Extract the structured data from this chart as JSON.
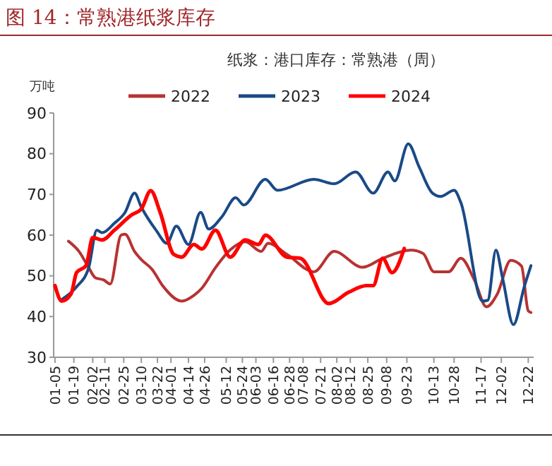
{
  "chart_data": {
    "type": "line",
    "title": "图 14：常熟港纸浆库存",
    "subtitle": "纸浆：港口库存：常熟港（周）",
    "ylabel": "万吨",
    "ylim": [
      30,
      90
    ],
    "yticks": [
      30,
      40,
      50,
      60,
      70,
      80,
      90
    ],
    "xlim": [
      "--01-04",
      "--12-26"
    ],
    "xticks": [
      {
        "value": "--01-05",
        "label": "01-05"
      },
      {
        "value": "--01-19",
        "label": "01-19"
      },
      {
        "value": "--02-02",
        "label": "02-02"
      },
      {
        "value": "--02-11",
        "label": "02-11"
      },
      {
        "value": "--02-25",
        "label": "02-25"
      },
      {
        "value": "--03-10",
        "label": "03-10"
      },
      {
        "value": "--03-22",
        "label": "03-22"
      },
      {
        "value": "--04-01",
        "label": "04-01"
      },
      {
        "value": "--04-14",
        "label": "04-14"
      },
      {
        "value": "--04-26",
        "label": "04-26"
      },
      {
        "value": "--05-12",
        "label": "05-12"
      },
      {
        "value": "--05-24",
        "label": "05-24"
      },
      {
        "value": "--06-03",
        "label": "06-03"
      },
      {
        "value": "--06-16",
        "label": "06-16"
      },
      {
        "value": "--06-28",
        "label": "06-28"
      },
      {
        "value": "--07-08",
        "label": "07-08"
      },
      {
        "value": "--07-21",
        "label": "07-21"
      },
      {
        "value": "--08-02",
        "label": "08-02"
      },
      {
        "value": "--08-12",
        "label": "08-12"
      },
      {
        "value": "--08-25",
        "label": "08-25"
      },
      {
        "value": "--09-08",
        "label": "09-08"
      },
      {
        "value": "--09-23",
        "label": "09-23"
      },
      {
        "value": "--10-13",
        "label": "10-13"
      },
      {
        "value": "--10-28",
        "label": "10-28"
      },
      {
        "value": "--11-17",
        "label": "11-17"
      },
      {
        "value": "--12-02",
        "label": "12-02"
      },
      {
        "value": "--12-22",
        "label": "12-22"
      }
    ],
    "legend": "top",
    "grid": false,
    "line_style": "solid",
    "marker": "none",
    "series": [
      {
        "name": "2022",
        "color": "#b83232",
        "x": [
          "--01-15",
          "--01-23",
          "--01-30",
          "--02-04",
          "--02-10",
          "--02-15",
          "--02-23",
          "--02-26",
          "--03-05",
          "--03-10",
          "--03-18",
          "--03-26",
          "--04-09",
          "--04-18",
          "--04-24",
          "--05-04",
          "--05-15",
          "--05-26",
          "--06-07",
          "--06-12",
          "--06-26",
          "--07-16",
          "--07-31",
          "--08-21",
          "--09-05",
          "--09-26",
          "--10-05",
          "--10-13",
          "--10-24",
          "--11-02",
          "--11-12",
          "--11-21",
          "--11-29",
          "--12-09",
          "--12-17",
          "--12-22",
          "--12-24"
        ],
        "values": [
          58.5,
          55.9,
          52,
          49.5,
          49,
          48,
          60,
          60.2,
          56,
          54,
          51.6,
          47.5,
          43.8,
          45.2,
          47,
          52,
          56.4,
          58.4,
          56,
          58,
          55.3,
          51,
          56,
          52.1,
          54.3,
          56.3,
          55.5,
          51,
          51,
          54.3,
          49,
          42.4,
          45.5,
          53.8,
          52.4,
          41.4,
          41
        ]
      },
      {
        "name": "2023",
        "color": "#1a4a86",
        "x": [
          "--01-10",
          "--01-21",
          "--01-30",
          "--02-05",
          "--02-09",
          "--02-18",
          "--02-26",
          "--03-05",
          "--03-10",
          "--03-21",
          "--03-29",
          "--04-05",
          "--04-14",
          "--04-23",
          "--04-29",
          "--05-09",
          "--05-19",
          "--05-25",
          "--06-10",
          "--06-19",
          "--07-16",
          "--07-31",
          "--08-16",
          "--08-29",
          "--09-09",
          "--09-14",
          "--09-24",
          "--10-02",
          "--10-12",
          "--10-18",
          "--10-28",
          "--11-02",
          "--11-18",
          "--11-22",
          "--11-28",
          "--12-03",
          "--12-11",
          "--12-19",
          "--12-24"
        ],
        "values": [
          44.2,
          47.3,
          52,
          61.2,
          60.6,
          62.9,
          65.6,
          70.3,
          66.9,
          61.2,
          58,
          62.2,
          57.7,
          65.6,
          61.5,
          64.6,
          69.2,
          67.4,
          73.7,
          71,
          73.7,
          72.6,
          75.5,
          70.3,
          75.5,
          73.3,
          82.4,
          76.8,
          70.3,
          69.5,
          71,
          68,
          43.8,
          44,
          56.3,
          49.4,
          38,
          47.3,
          52.5
        ]
      },
      {
        "name": "2024",
        "color": "#ff0000",
        "x": [
          "--01-05",
          "--01-10",
          "--01-17",
          "--01-21",
          "--01-28",
          "--02-02",
          "--02-09",
          "--02-18",
          "--03-03",
          "--03-10",
          "--03-17",
          "--03-24",
          "--04-03",
          "--04-09",
          "--04-18",
          "--04-24",
          "--05-04",
          "--05-15",
          "--05-26",
          "--06-05",
          "--06-10",
          "--06-26",
          "--07-06",
          "--07-27",
          "--08-11",
          "--08-24",
          "--08-29",
          "--09-05",
          "--09-12",
          "--09-21"
        ],
        "values": [
          47.6,
          43.8,
          45.6,
          50.8,
          52.5,
          59.4,
          58.8,
          61.2,
          65,
          66.4,
          70.9,
          65.6,
          55.3,
          54.6,
          57.7,
          56.6,
          61.2,
          54.6,
          58.8,
          57.7,
          60,
          54.6,
          54.3,
          43.2,
          46,
          47.6,
          47.6,
          54.3,
          50.8,
          56.7
        ]
      }
    ]
  }
}
